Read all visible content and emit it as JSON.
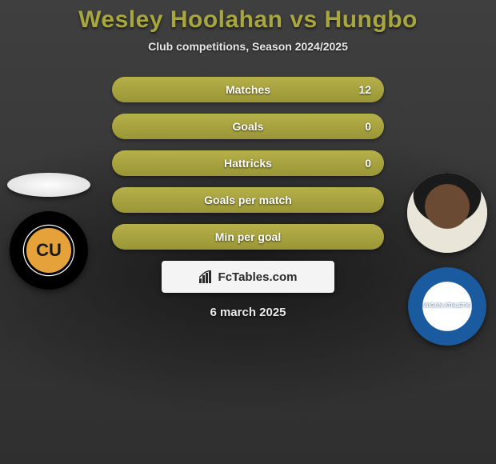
{
  "title": "Wesley Hoolahan vs Hungbo",
  "subtitle": "Club competitions, Season 2024/2025",
  "date": "6 march 2025",
  "brand": "FcTables.com",
  "colors": {
    "accent": "#a8a63e",
    "bar": "#aaa640",
    "text": "#ffffff"
  },
  "player_left": {
    "name": "Wesley Hoolahan",
    "club_short": "CU",
    "club_label": "Cambridge United"
  },
  "player_right": {
    "name": "Hungbo",
    "club_label": "WIGAN ATHLETIC"
  },
  "stats": [
    {
      "label": "Matches",
      "right_value": "12",
      "right_fill_pct": 100,
      "show_value": true
    },
    {
      "label": "Goals",
      "right_value": "0",
      "right_fill_pct": 100,
      "show_value": true
    },
    {
      "label": "Hattricks",
      "right_value": "0",
      "right_fill_pct": 100,
      "show_value": true
    },
    {
      "label": "Goals per match",
      "right_value": "",
      "right_fill_pct": 100,
      "show_value": false
    },
    {
      "label": "Min per goal",
      "right_value": "",
      "right_fill_pct": 100,
      "show_value": false
    }
  ]
}
